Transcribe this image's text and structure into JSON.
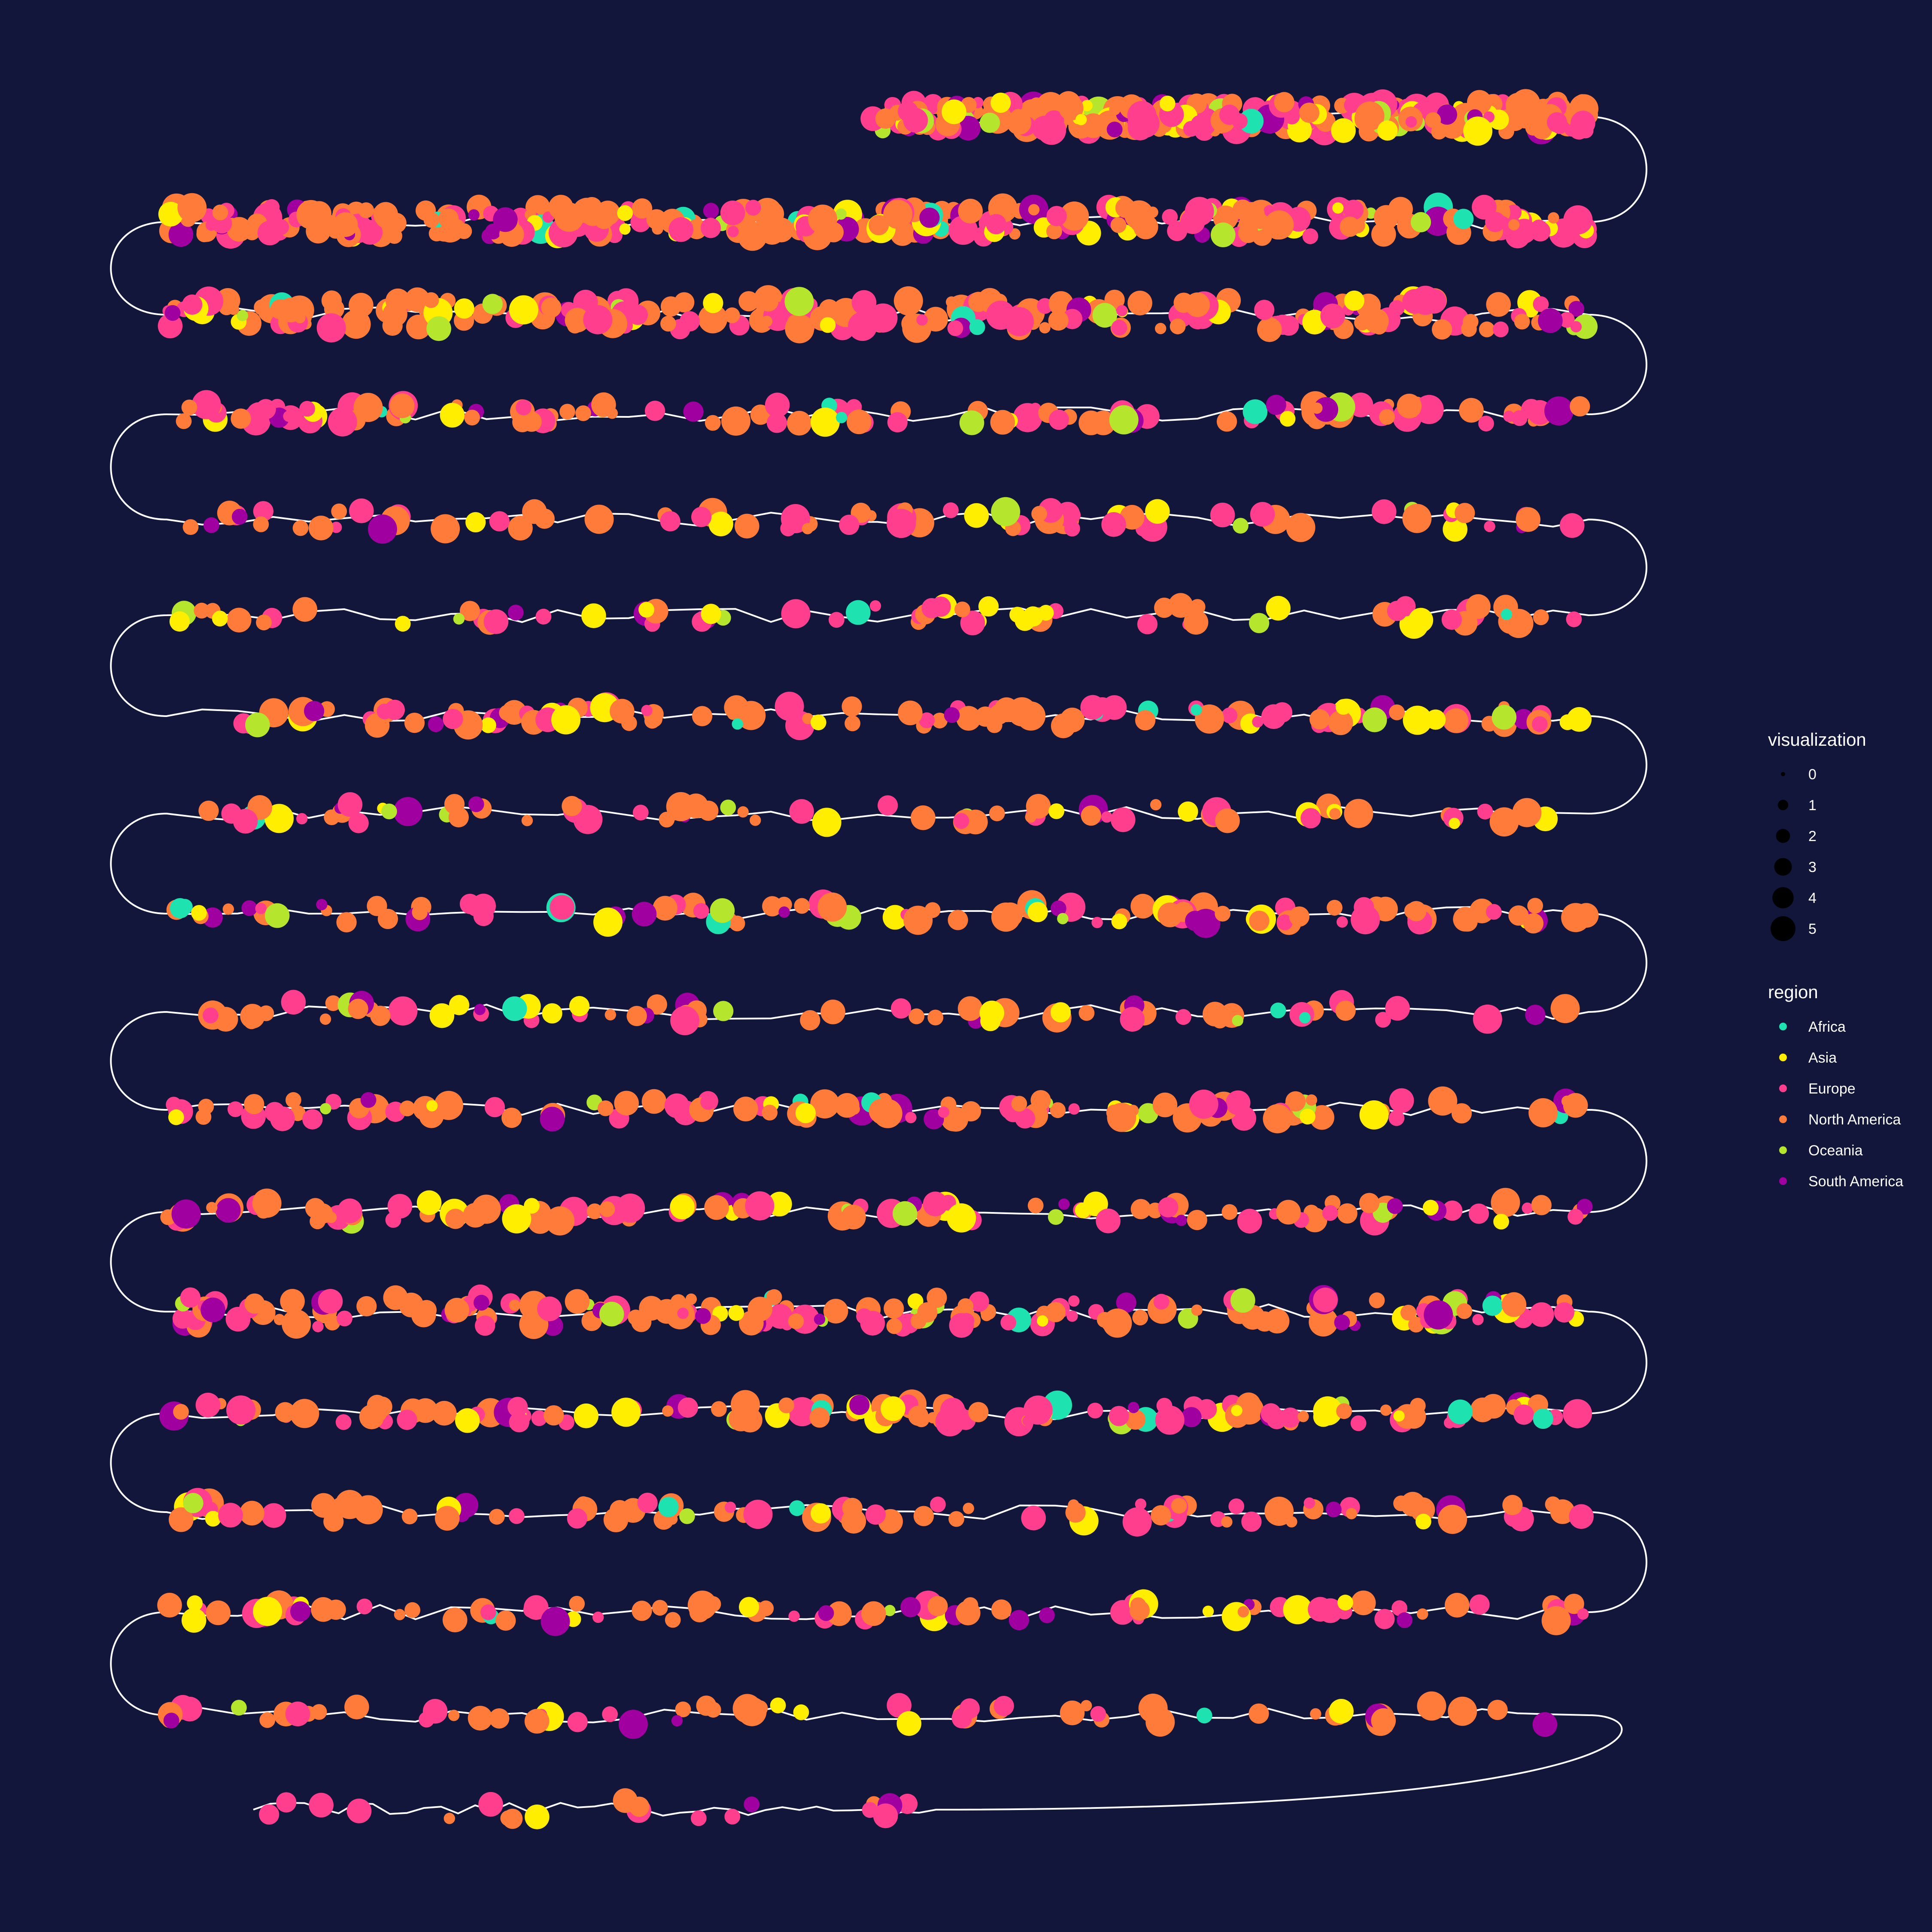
{
  "chart_data": {
    "type": "scatter",
    "description_role": "serpentine timeline of points sized by visualization and colored by region, joined by a white line",
    "background": "#13163b",
    "line_color": "#ffffff",
    "rows": 18,
    "legends": [
      {
        "title": "visualization",
        "kind": "size",
        "entries": [
          "0",
          "1",
          "2",
          "3",
          "4",
          "5"
        ],
        "values": [
          0,
          1,
          2,
          3,
          4,
          5
        ]
      },
      {
        "title": "region",
        "kind": "color",
        "entries": [
          "Africa",
          "Asia",
          "Europe",
          "North America",
          "Oceania",
          "South America"
        ],
        "colors": [
          "#1ee3b0",
          "#ffee00",
          "#ff3f8e",
          "#ff7b3a",
          "#b5e52d",
          "#a100a0"
        ]
      }
    ],
    "row_density": [
      300,
      320,
      220,
      120,
      80,
      70,
      110,
      70,
      100,
      70,
      110,
      110,
      170,
      130,
      90,
      90,
      60,
      20
    ],
    "region_weights": [
      0.03,
      0.1,
      0.3,
      0.45,
      0.04,
      0.08
    ],
    "size_range": [
      0,
      5
    ]
  }
}
